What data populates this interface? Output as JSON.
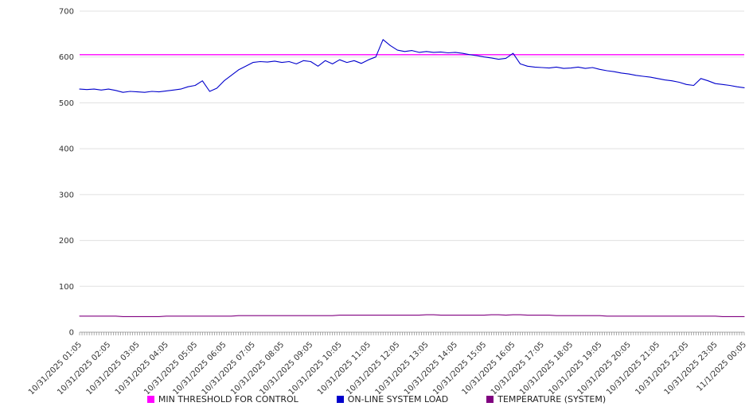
{
  "chart_data": {
    "type": "line",
    "title": "",
    "xlabel": "",
    "ylabel": "",
    "ylim": [
      0,
      700
    ],
    "y_ticks": [
      0,
      100,
      200,
      300,
      400,
      500,
      600,
      700
    ],
    "grid": true,
    "legend_position": "bottom",
    "points_per_hour": 4,
    "minor_ticks_per_hour": 12,
    "x_labels": [
      "10/31/2025 01:05",
      "10/31/2025 02:05",
      "10/31/2025 03:05",
      "10/31/2025 04:05",
      "10/31/2025 05:05",
      "10/31/2025 06:05",
      "10/31/2025 07:05",
      "10/31/2025 08:05",
      "10/31/2025 09:05",
      "10/31/2025 10:05",
      "10/31/2025 11:05",
      "10/31/2025 12:05",
      "10/31/2025 13:05",
      "10/31/2025 14:05",
      "10/31/2025 15:05",
      "10/31/2025 16:05",
      "10/31/2025 17:05",
      "10/31/2025 18:05",
      "10/31/2025 19:05",
      "10/31/2025 20:05",
      "10/31/2025 21:05",
      "10/31/2025 22:05",
      "10/31/2025 23:05",
      "11/1/2025 00:05"
    ],
    "series": [
      {
        "name": "MIN THRESHOLD FOR CONTROL",
        "color": "#ff00ff",
        "constant": 605
      },
      {
        "name": "ON-LINE SYSTEM LOAD",
        "color": "#0000cc",
        "values": [
          530,
          529,
          530,
          528,
          530,
          527,
          523,
          525,
          524,
          523,
          525,
          524,
          526,
          528,
          530,
          535,
          538,
          548,
          525,
          532,
          548,
          560,
          572,
          580,
          588,
          590,
          589,
          591,
          588,
          590,
          585,
          592,
          590,
          580,
          592,
          585,
          594,
          588,
          592,
          586,
          594,
          600,
          638,
          625,
          615,
          612,
          614,
          610,
          612,
          610,
          611,
          609,
          610,
          608,
          605,
          603,
          600,
          598,
          595,
          597,
          608,
          585,
          580,
          578,
          577,
          576,
          578,
          575,
          576,
          578,
          575,
          577,
          573,
          570,
          568,
          565,
          563,
          560,
          558,
          556,
          553,
          550,
          548,
          545,
          540,
          538,
          553,
          548,
          542,
          540,
          538,
          535,
          533
        ]
      },
      {
        "name": "TEMPERATURE (SYSTEM)",
        "color": "#800080",
        "values": [
          35,
          35,
          35,
          35,
          35,
          35,
          34,
          34,
          34,
          34,
          34,
          34,
          35,
          35,
          35,
          35,
          35,
          35,
          35,
          35,
          35,
          35,
          36,
          36,
          36,
          36,
          36,
          36,
          36,
          36,
          36,
          36,
          36,
          36,
          36,
          36,
          37,
          37,
          37,
          37,
          37,
          37,
          37,
          37,
          37,
          37,
          37,
          37,
          38,
          38,
          37,
          37,
          37,
          37,
          37,
          37,
          37,
          38,
          38,
          37,
          38,
          38,
          37,
          37,
          37,
          37,
          36,
          36,
          36,
          36,
          36,
          36,
          36,
          35,
          35,
          35,
          35,
          35,
          35,
          35,
          35,
          35,
          35,
          35,
          35,
          35,
          35,
          35,
          35,
          34,
          34,
          34,
          34
        ]
      }
    ]
  },
  "legend": {
    "items": [
      {
        "label": "MIN THRESHOLD FOR CONTROL",
        "color": "#ff00ff"
      },
      {
        "label": "ON-LINE SYSTEM LOAD",
        "color": "#0000cc"
      },
      {
        "label": "TEMPERATURE (SYSTEM)",
        "color": "#800080"
      }
    ]
  }
}
